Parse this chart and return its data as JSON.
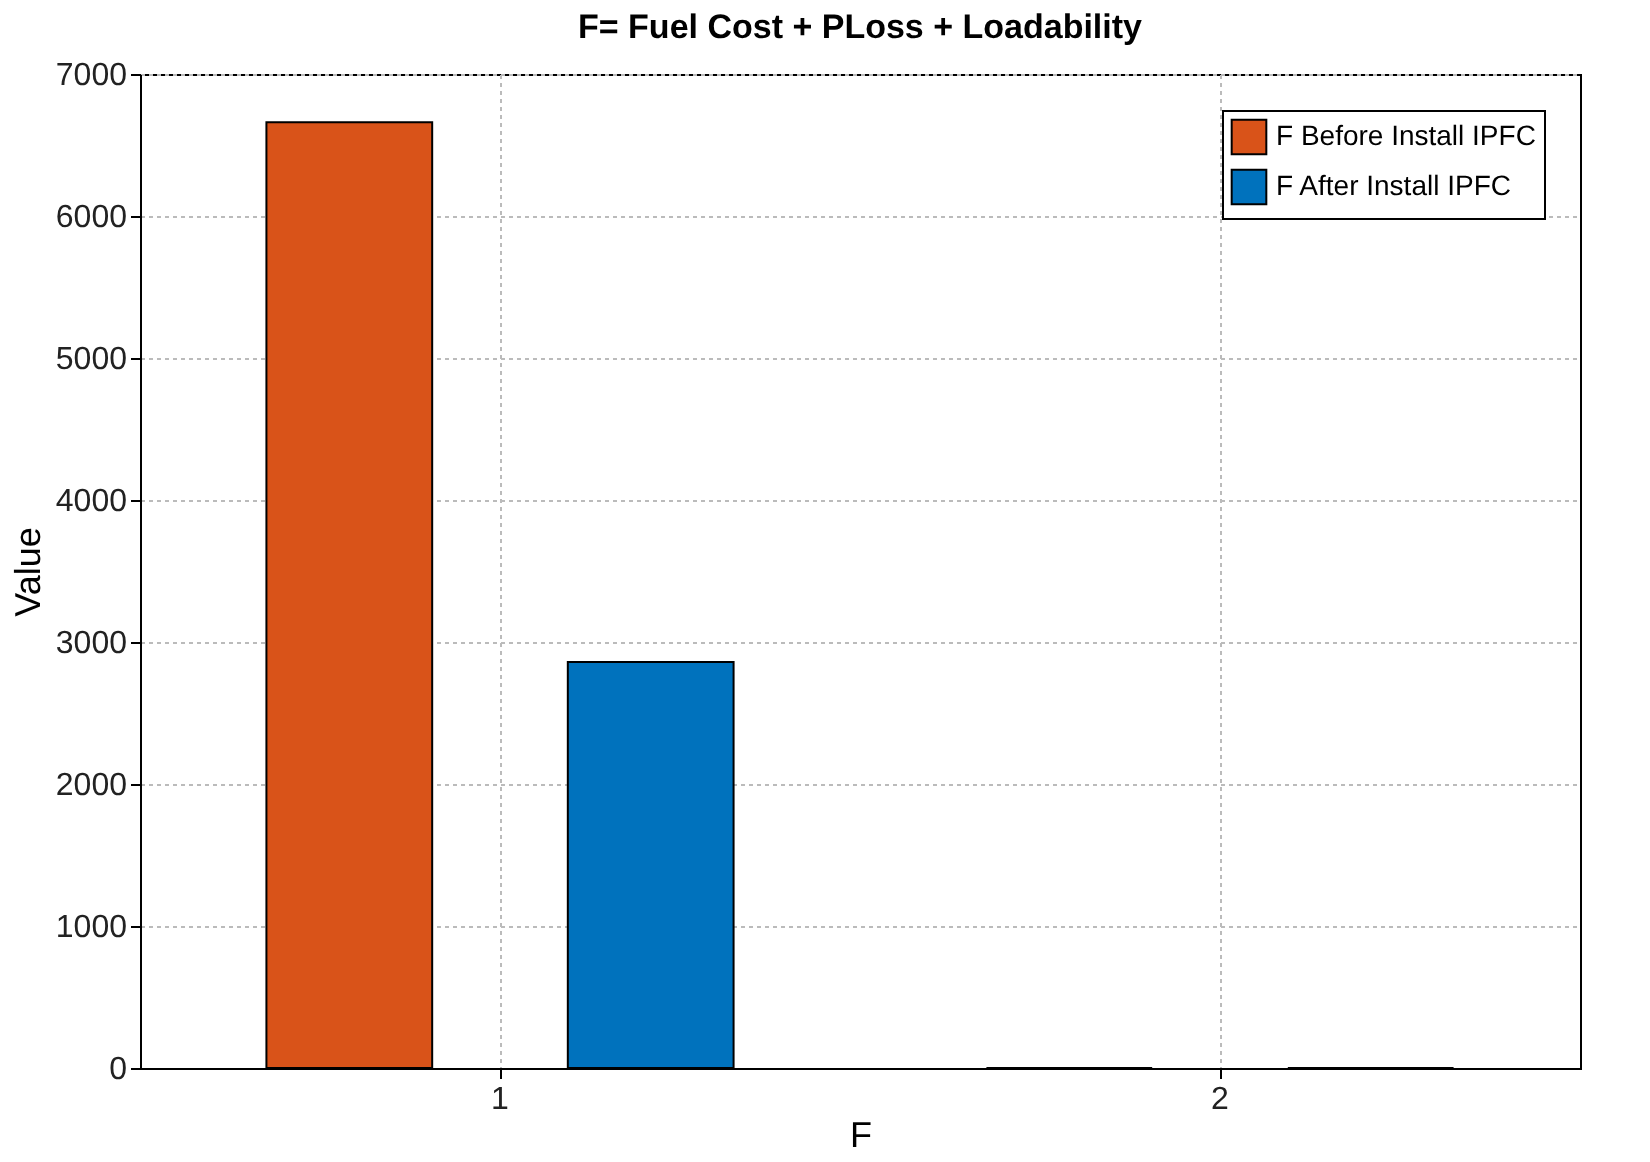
{
  "chart_data": {
    "type": "bar",
    "title": "F= Fuel Cost + PLoss + Loadability",
    "xlabel": "F",
    "ylabel": "Value",
    "categories": [
      "1",
      "2"
    ],
    "series": [
      {
        "name": "F Before Install IPFC",
        "color": "#d95319",
        "values": [
          6660,
          0
        ]
      },
      {
        "name": "F After Install IPFC",
        "color": "#0072bd",
        "values": [
          2860,
          0
        ]
      }
    ],
    "ylim": [
      0,
      7000
    ],
    "yticks": [
      0,
      1000,
      2000,
      3000,
      4000,
      5000,
      6000,
      7000
    ],
    "grid": true,
    "legend": "top right"
  }
}
